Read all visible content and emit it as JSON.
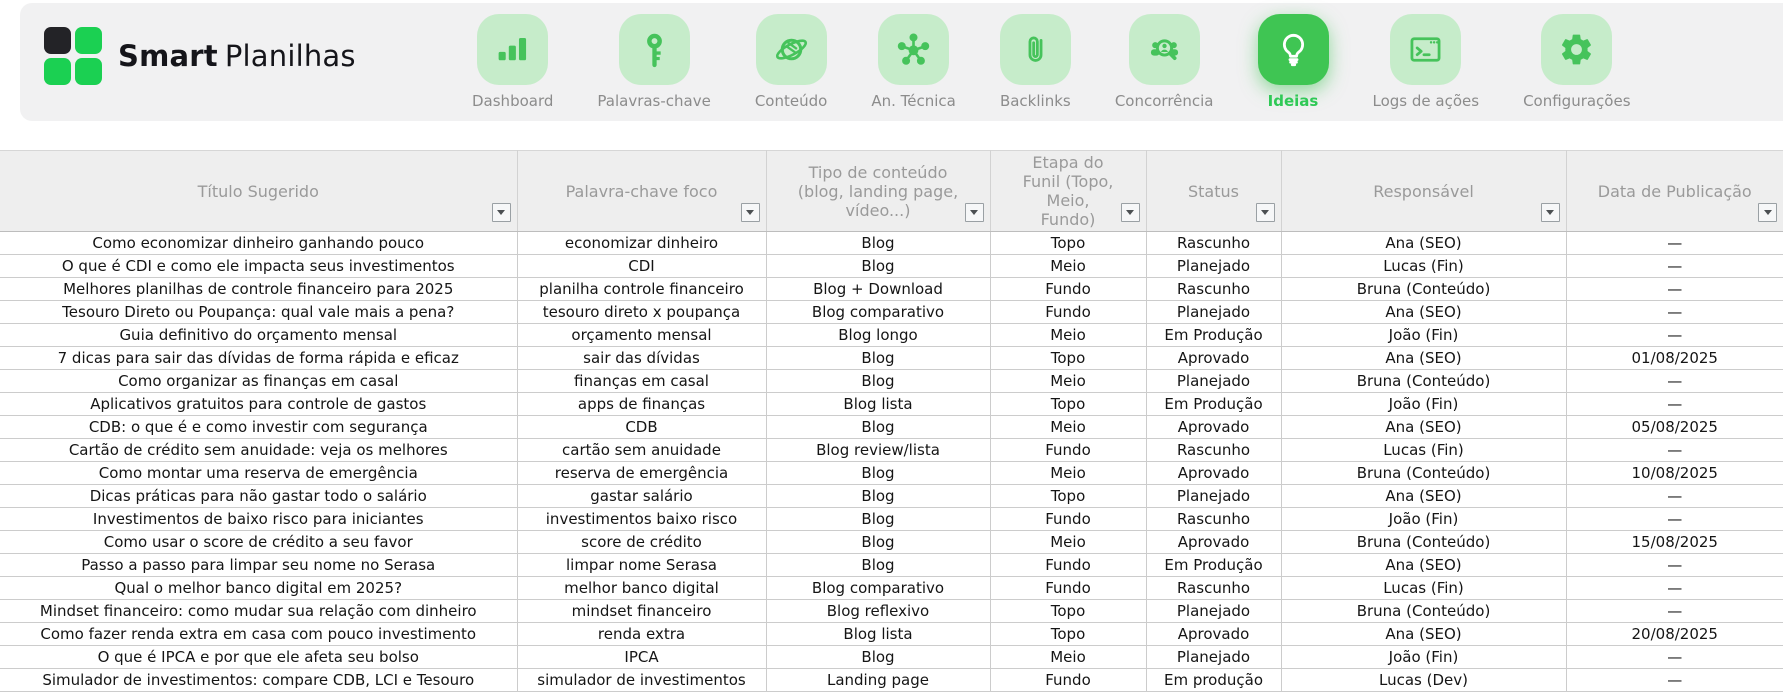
{
  "colors": {
    "accent_green": "#3fc553",
    "light_green": "#c6ecca",
    "icon_green": "#46c35b",
    "logo_green": "#1bd052",
    "logo_dark": "#232327",
    "panel_gray": "#f1f1f2",
    "header_gray": "#eeeeee",
    "label_gray": "#8c8c8c"
  },
  "brand": {
    "name_bold": "Smart",
    "name_regular": "Planilhas"
  },
  "nav": {
    "items": [
      {
        "label": "Dashboard",
        "icon": "bar-chart-icon",
        "active": false
      },
      {
        "label": "Palavras-chave",
        "icon": "key-icon",
        "active": false
      },
      {
        "label": "Conteúdo",
        "icon": "planet-icon",
        "active": false
      },
      {
        "label": "An. Técnica",
        "icon": "network-icon",
        "active": false
      },
      {
        "label": "Backlinks",
        "icon": "paperclip-icon",
        "active": false
      },
      {
        "label": "Concorrência",
        "icon": "people-search-icon",
        "active": false
      },
      {
        "label": "Ideias",
        "icon": "lightbulb-icon",
        "active": true
      },
      {
        "label": "Logs de ações",
        "icon": "terminal-icon",
        "active": false
      },
      {
        "label": "Configurações",
        "icon": "gear-icon",
        "active": false
      }
    ]
  },
  "table": {
    "columns": [
      {
        "key": "titulo",
        "label": "Título Sugerido"
      },
      {
        "key": "palavra_chave",
        "label": "Palavra-chave foco"
      },
      {
        "key": "tipo",
        "label": "Tipo de conteúdo (blog, landing page, vídeo...)"
      },
      {
        "key": "etapa",
        "label": "Etapa do Funil (Topo, Meio, Fundo)"
      },
      {
        "key": "status",
        "label": "Status"
      },
      {
        "key": "responsavel",
        "label": "Responsável"
      },
      {
        "key": "data_publicacao",
        "label": "Data de Publicação"
      }
    ],
    "rows": [
      [
        "Como economizar dinheiro ganhando pouco",
        "economizar dinheiro",
        "Blog",
        "Topo",
        "Rascunho",
        "Ana (SEO)",
        "—"
      ],
      [
        "O que é CDI e como ele impacta seus investimentos",
        "CDI",
        "Blog",
        "Meio",
        "Planejado",
        "Lucas (Fin)",
        "—"
      ],
      [
        "Melhores planilhas de controle financeiro para 2025",
        "planilha controle financeiro",
        "Blog + Download",
        "Fundo",
        "Rascunho",
        "Bruna (Conteúdo)",
        "—"
      ],
      [
        "Tesouro Direto ou Poupança: qual vale mais a pena?",
        "tesouro direto x poupança",
        "Blog comparativo",
        "Fundo",
        "Planejado",
        "Ana (SEO)",
        "—"
      ],
      [
        "Guia definitivo do orçamento mensal",
        "orçamento mensal",
        "Blog longo",
        "Meio",
        "Em Produção",
        "João (Fin)",
        "—"
      ],
      [
        "7 dicas para sair das dívidas de forma rápida e eficaz",
        "sair das dívidas",
        "Blog",
        "Topo",
        "Aprovado",
        "Ana (SEO)",
        "01/08/2025"
      ],
      [
        "Como organizar as finanças em casal",
        "finanças em casal",
        "Blog",
        "Meio",
        "Planejado",
        "Bruna (Conteúdo)",
        "—"
      ],
      [
        "Aplicativos gratuitos para controle de gastos",
        "apps de finanças",
        "Blog lista",
        "Topo",
        "Em Produção",
        "João (Fin)",
        "—"
      ],
      [
        "CDB: o que é e como investir com segurança",
        "CDB",
        "Blog",
        "Meio",
        "Aprovado",
        "Ana (SEO)",
        "05/08/2025"
      ],
      [
        "Cartão de crédito sem anuidade: veja os melhores",
        "cartão sem anuidade",
        "Blog review/lista",
        "Fundo",
        "Rascunho",
        "Lucas (Fin)",
        "—"
      ],
      [
        "Como montar uma reserva de emergência",
        "reserva de emergência",
        "Blog",
        "Meio",
        "Aprovado",
        "Bruna (Conteúdo)",
        "10/08/2025"
      ],
      [
        "Dicas práticas para não gastar todo o salário",
        "gastar salário",
        "Blog",
        "Topo",
        "Planejado",
        "Ana (SEO)",
        "—"
      ],
      [
        "Investimentos de baixo risco para iniciantes",
        "investimentos baixo risco",
        "Blog",
        "Fundo",
        "Rascunho",
        "João (Fin)",
        "—"
      ],
      [
        "Como usar o score de crédito a seu favor",
        "score de crédito",
        "Blog",
        "Meio",
        "Aprovado",
        "Bruna (Conteúdo)",
        "15/08/2025"
      ],
      [
        "Passo a passo para limpar seu nome no Serasa",
        "limpar nome Serasa",
        "Blog",
        "Fundo",
        "Em Produção",
        "Ana (SEO)",
        "—"
      ],
      [
        "Qual o melhor banco digital em 2025?",
        "melhor banco digital",
        "Blog comparativo",
        "Fundo",
        "Rascunho",
        "Lucas (Fin)",
        "—"
      ],
      [
        "Mindset financeiro: como mudar sua relação com dinheiro",
        "mindset financeiro",
        "Blog reflexivo",
        "Topo",
        "Planejado",
        "Bruna (Conteúdo)",
        "—"
      ],
      [
        "Como fazer renda extra em casa com pouco investimento",
        "renda extra",
        "Blog lista",
        "Topo",
        "Aprovado",
        "Ana (SEO)",
        "20/08/2025"
      ],
      [
        "O que é IPCA e por que ele afeta seu bolso",
        "IPCA",
        "Blog",
        "Meio",
        "Planejado",
        "João (Fin)",
        "—"
      ],
      [
        "Simulador de investimentos: compare CDB, LCI e Tesouro",
        "simulador de investimentos",
        "Landing page",
        "Fundo",
        "Em produção",
        "Lucas (Dev)",
        "—"
      ]
    ]
  }
}
